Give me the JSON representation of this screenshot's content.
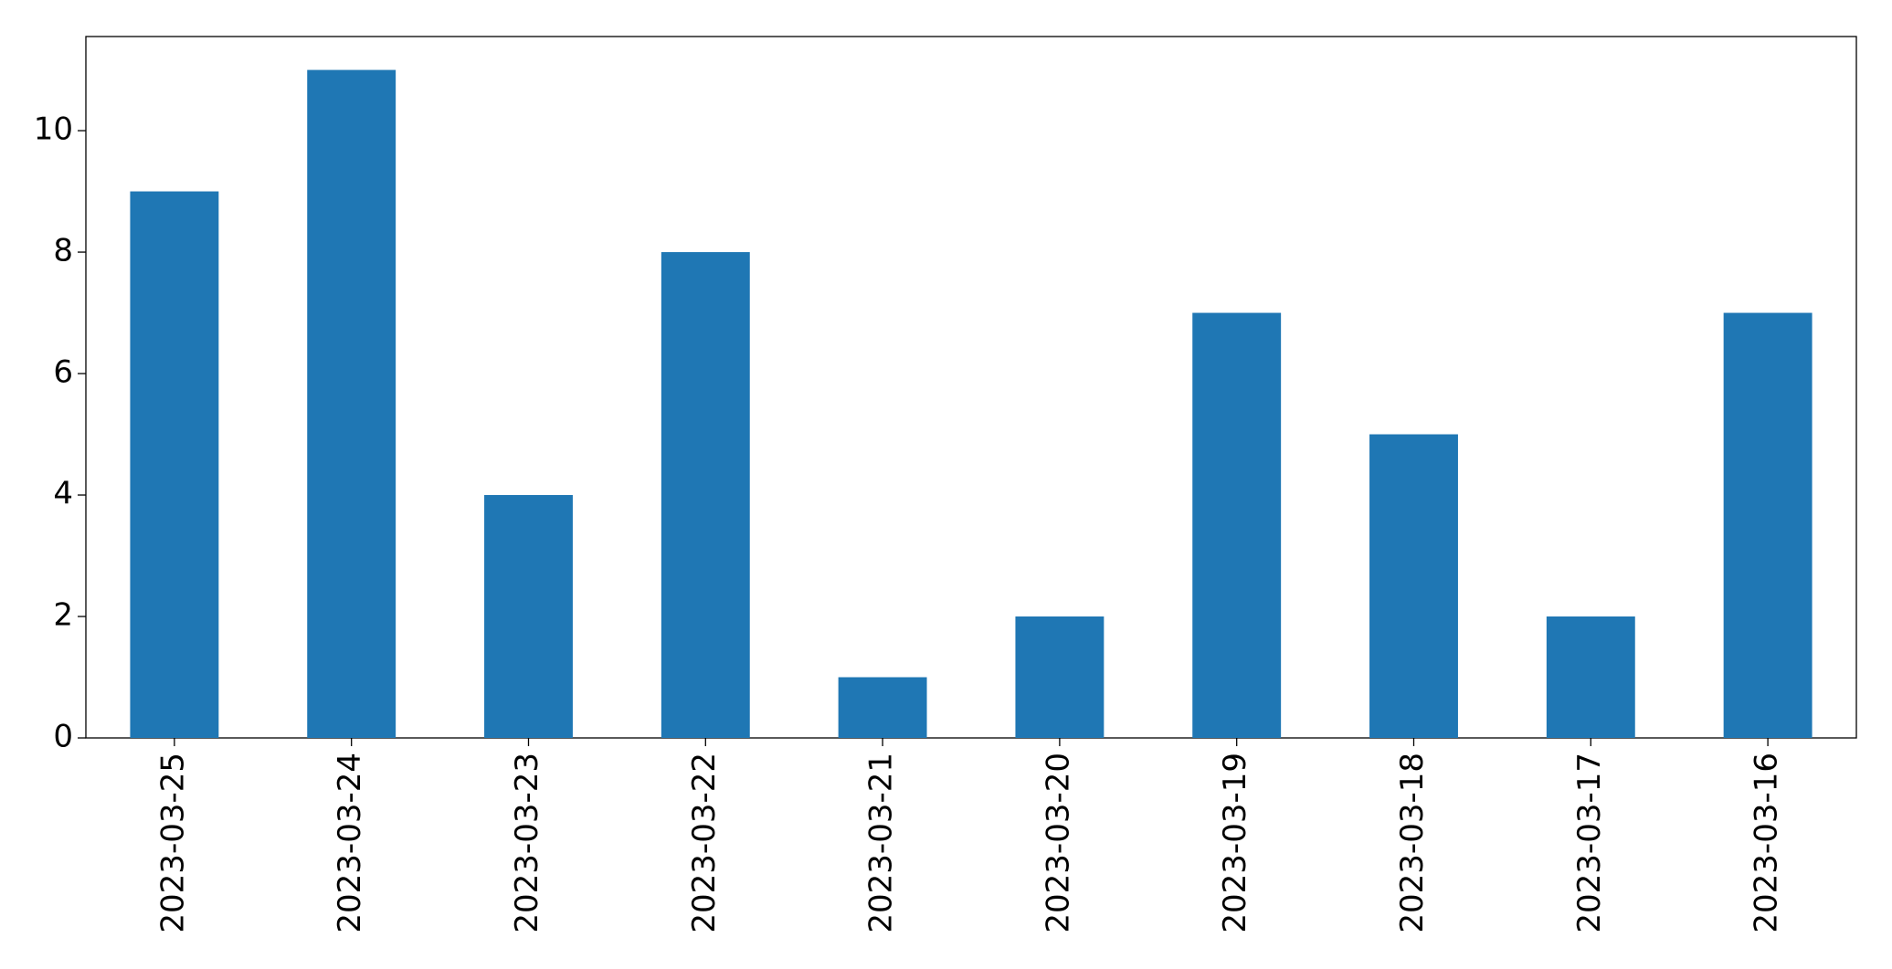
{
  "chart_data": {
    "type": "bar",
    "categories": [
      "2023-03-25",
      "2023-03-24",
      "2023-03-23",
      "2023-03-22",
      "2023-03-21",
      "2023-03-20",
      "2023-03-19",
      "2023-03-18",
      "2023-03-17",
      "2023-03-16"
    ],
    "values": [
      9,
      11,
      4,
      8,
      1,
      2,
      7,
      5,
      2,
      7
    ],
    "color": "#1f77b4",
    "ylim": [
      0,
      11.55
    ],
    "yticks": [
      0,
      2,
      4,
      6,
      8,
      10
    ],
    "grid": false
  }
}
